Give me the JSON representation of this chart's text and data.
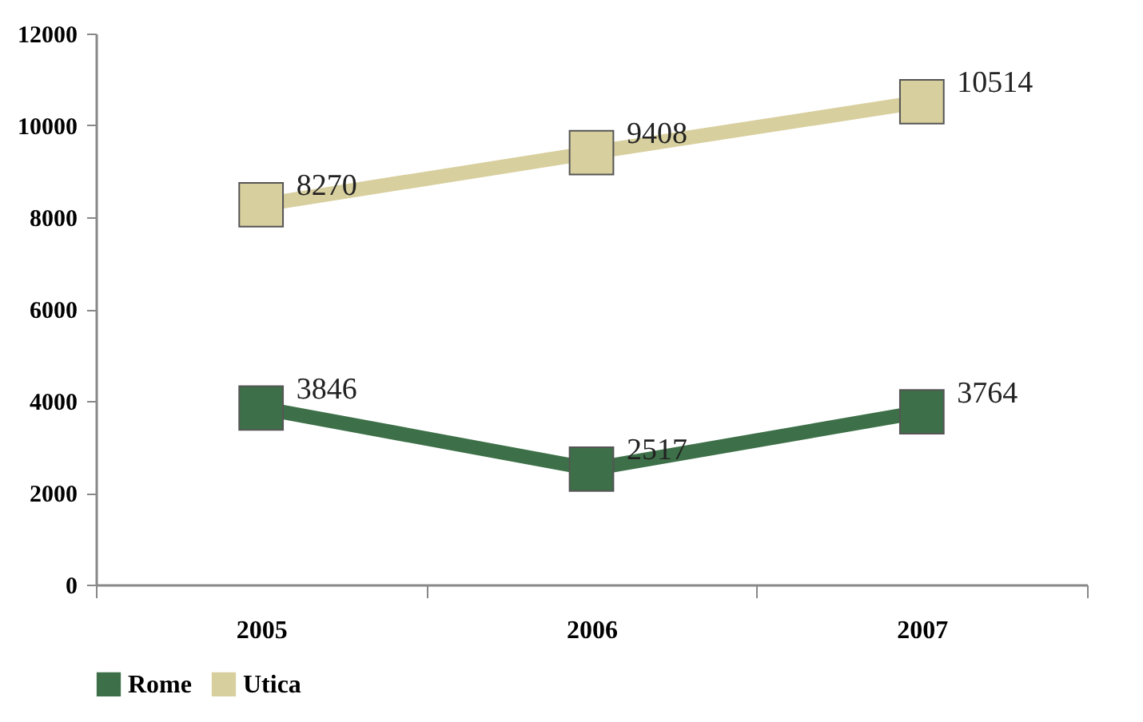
{
  "chart_data": {
    "type": "line",
    "categories": [
      "2005",
      "2006",
      "2007"
    ],
    "series": [
      {
        "name": "Rome",
        "color": "#3d7048",
        "values": [
          3846,
          2517,
          3764
        ]
      },
      {
        "name": "Utica",
        "color": "#d8cf9e",
        "values": [
          8270,
          9408,
          10514
        ]
      }
    ],
    "ylim": [
      0,
      12000
    ],
    "yticks": [
      0,
      2000,
      4000,
      6000,
      8000,
      10000,
      12000
    ],
    "grid": false,
    "legend": "bottom",
    "marker": "square",
    "line_style": "solid",
    "data_labels": true
  }
}
